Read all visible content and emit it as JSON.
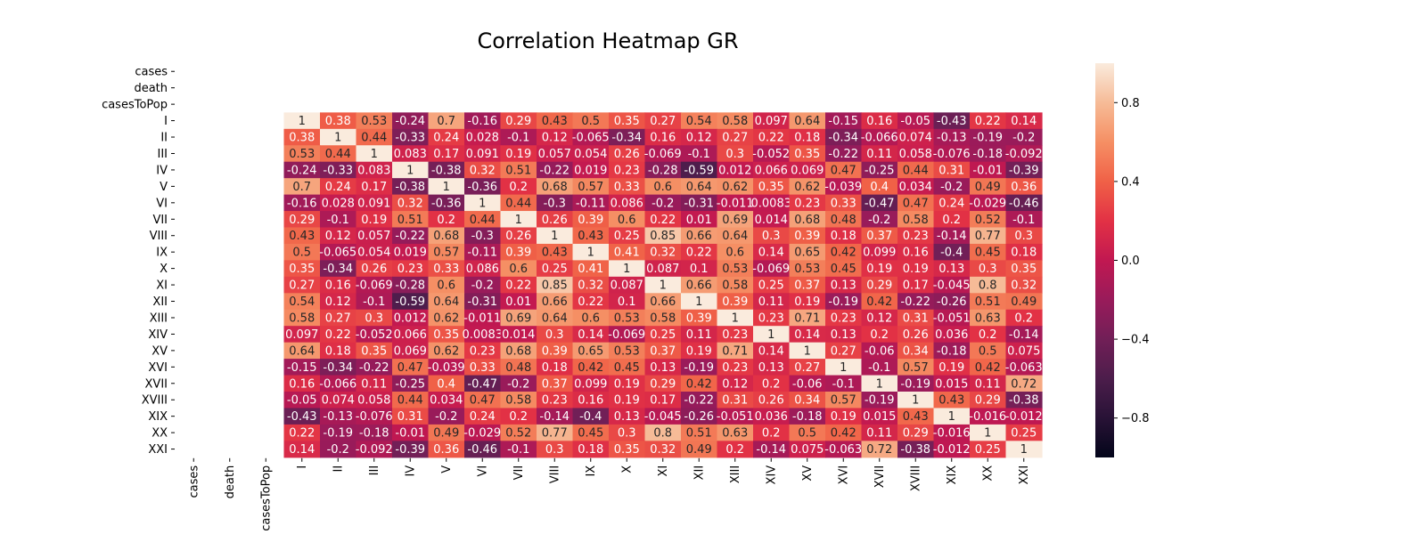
{
  "chart_data": {
    "type": "heatmap",
    "title": "Correlation Heatmap GR",
    "rows": [
      "cases",
      "death",
      "casesToPop",
      "I",
      "II",
      "III",
      "IV",
      "V",
      "VI",
      "VII",
      "VIII",
      "IX",
      "X",
      "XI",
      "XII",
      "XIII",
      "XIV",
      "XV",
      "XVI",
      "XVII",
      "XVIII",
      "XIX",
      "XX",
      "XXI"
    ],
    "columns": [
      "cases",
      "death",
      "casesToPop",
      "I",
      "II",
      "III",
      "IV",
      "V",
      "VI",
      "VII",
      "VIII",
      "IX",
      "X",
      "XI",
      "XII",
      "XIII",
      "XIV",
      "XV",
      "XVI",
      "XVII",
      "XVIII",
      "XIX",
      "XX",
      "XXI"
    ],
    "values": [
      [
        null,
        null,
        null,
        null,
        null,
        null,
        null,
        null,
        null,
        null,
        null,
        null,
        null,
        null,
        null,
        null,
        null,
        null,
        null,
        null,
        null,
        null,
        null,
        null
      ],
      [
        null,
        null,
        null,
        null,
        null,
        null,
        null,
        null,
        null,
        null,
        null,
        null,
        null,
        null,
        null,
        null,
        null,
        null,
        null,
        null,
        null,
        null,
        null,
        null
      ],
      [
        null,
        null,
        null,
        null,
        null,
        null,
        null,
        null,
        null,
        null,
        null,
        null,
        null,
        null,
        null,
        null,
        null,
        null,
        null,
        null,
        null,
        null,
        null,
        null
      ],
      [
        null,
        null,
        null,
        1,
        0.38,
        0.53,
        -0.24,
        0.7,
        -0.16,
        0.29,
        0.43,
        0.5,
        0.35,
        0.27,
        0.54,
        0.58,
        0.097,
        0.64,
        -0.15,
        0.16,
        -0.05,
        -0.43,
        0.22,
        0.14
      ],
      [
        null,
        null,
        null,
        0.38,
        1,
        0.44,
        -0.33,
        0.24,
        0.028,
        -0.1,
        0.12,
        -0.065,
        -0.34,
        0.16,
        0.12,
        0.27,
        0.22,
        0.18,
        -0.34,
        -0.066,
        0.074,
        -0.13,
        -0.19,
        -0.2
      ],
      [
        null,
        null,
        null,
        0.53,
        0.44,
        1,
        0.083,
        0.17,
        0.091,
        0.19,
        0.057,
        0.054,
        0.26,
        -0.069,
        -0.1,
        0.3,
        -0.052,
        0.35,
        -0.22,
        0.11,
        0.058,
        -0.076,
        -0.18,
        -0.092
      ],
      [
        null,
        null,
        null,
        -0.24,
        -0.33,
        0.083,
        1,
        -0.38,
        0.32,
        0.51,
        -0.22,
        0.019,
        0.23,
        -0.28,
        -0.59,
        0.012,
        0.066,
        0.069,
        0.47,
        -0.25,
        0.44,
        0.31,
        -0.01,
        -0.39
      ],
      [
        null,
        null,
        null,
        0.7,
        0.24,
        0.17,
        -0.38,
        1,
        -0.36,
        0.2,
        0.68,
        0.57,
        0.33,
        0.6,
        0.64,
        0.62,
        0.35,
        0.62,
        -0.039,
        0.4,
        0.034,
        -0.2,
        0.49,
        0.36
      ],
      [
        null,
        null,
        null,
        -0.16,
        0.028,
        0.091,
        0.32,
        -0.36,
        1,
        0.44,
        -0.3,
        -0.11,
        0.086,
        -0.2,
        -0.31,
        -0.011,
        0.0083,
        0.23,
        0.33,
        -0.47,
        0.47,
        0.24,
        -0.029,
        -0.46
      ],
      [
        null,
        null,
        null,
        0.29,
        -0.1,
        0.19,
        0.51,
        0.2,
        0.44,
        1,
        0.26,
        0.39,
        0.6,
        0.22,
        0.01,
        0.69,
        0.014,
        0.68,
        0.48,
        -0.2,
        0.58,
        0.2,
        0.52,
        -0.1
      ],
      [
        null,
        null,
        null,
        0.43,
        0.12,
        0.057,
        -0.22,
        0.68,
        -0.3,
        0.26,
        1,
        0.43,
        0.25,
        0.85,
        0.66,
        0.64,
        0.3,
        0.39,
        0.18,
        0.37,
        0.23,
        -0.14,
        0.77,
        0.3
      ],
      [
        null,
        null,
        null,
        0.5,
        -0.065,
        0.054,
        0.019,
        0.57,
        -0.11,
        0.39,
        0.43,
        1,
        0.41,
        0.32,
        0.22,
        0.6,
        0.14,
        0.65,
        0.42,
        0.099,
        0.16,
        -0.4,
        0.45,
        0.18
      ],
      [
        null,
        null,
        null,
        0.35,
        -0.34,
        0.26,
        0.23,
        0.33,
        0.086,
        0.6,
        0.25,
        0.41,
        1,
        0.087,
        0.1,
        0.53,
        -0.069,
        0.53,
        0.45,
        0.19,
        0.19,
        0.13,
        0.3,
        0.35
      ],
      [
        null,
        null,
        null,
        0.27,
        0.16,
        -0.069,
        -0.28,
        0.6,
        -0.2,
        0.22,
        0.85,
        0.32,
        0.087,
        1,
        0.66,
        0.58,
        0.25,
        0.37,
        0.13,
        0.29,
        0.17,
        -0.045,
        0.8,
        0.32
      ],
      [
        null,
        null,
        null,
        0.54,
        0.12,
        -0.1,
        -0.59,
        0.64,
        -0.31,
        0.01,
        0.66,
        0.22,
        0.1,
        0.66,
        1,
        0.39,
        0.11,
        0.19,
        -0.19,
        0.42,
        -0.22,
        -0.26,
        0.51,
        0.49
      ],
      [
        null,
        null,
        null,
        0.58,
        0.27,
        0.3,
        0.012,
        0.62,
        -0.011,
        0.69,
        0.64,
        0.6,
        0.53,
        0.58,
        0.39,
        1,
        0.23,
        0.71,
        0.23,
        0.12,
        0.31,
        -0.051,
        0.63,
        0.2
      ],
      [
        null,
        null,
        null,
        0.097,
        0.22,
        -0.052,
        0.066,
        0.35,
        0.0083,
        0.014,
        0.3,
        0.14,
        -0.069,
        0.25,
        0.11,
        0.23,
        1,
        0.14,
        0.13,
        0.2,
        0.26,
        0.036,
        0.2,
        -0.14
      ],
      [
        null,
        null,
        null,
        0.64,
        0.18,
        0.35,
        0.069,
        0.62,
        0.23,
        0.68,
        0.39,
        0.65,
        0.53,
        0.37,
        0.19,
        0.71,
        0.14,
        1,
        0.27,
        -0.06,
        0.34,
        -0.18,
        0.5,
        0.075
      ],
      [
        null,
        null,
        null,
        -0.15,
        -0.34,
        -0.22,
        0.47,
        -0.039,
        0.33,
        0.48,
        0.18,
        0.42,
        0.45,
        0.13,
        -0.19,
        0.23,
        0.13,
        0.27,
        1,
        -0.1,
        0.57,
        0.19,
        0.42,
        -0.063
      ],
      [
        null,
        null,
        null,
        0.16,
        -0.066,
        0.11,
        -0.25,
        0.4,
        -0.47,
        -0.2,
        0.37,
        0.099,
        0.19,
        0.29,
        0.42,
        0.12,
        0.2,
        -0.06,
        -0.1,
        1,
        -0.19,
        0.015,
        0.11,
        0.72
      ],
      [
        null,
        null,
        null,
        -0.05,
        0.074,
        0.058,
        0.44,
        0.034,
        0.47,
        0.58,
        0.23,
        0.16,
        0.19,
        0.17,
        -0.22,
        0.31,
        0.26,
        0.34,
        0.57,
        -0.19,
        1,
        0.43,
        0.29,
        -0.38
      ],
      [
        null,
        null,
        null,
        -0.43,
        -0.13,
        -0.076,
        0.31,
        -0.2,
        0.24,
        0.2,
        -0.14,
        -0.4,
        0.13,
        -0.045,
        -0.26,
        -0.051,
        0.036,
        -0.18,
        0.19,
        0.015,
        0.43,
        1,
        -0.016,
        -0.012
      ],
      [
        null,
        null,
        null,
        0.22,
        -0.19,
        -0.18,
        -0.01,
        0.49,
        -0.029,
        0.52,
        0.77,
        0.45,
        0.3,
        0.8,
        0.51,
        0.63,
        0.2,
        0.5,
        0.42,
        0.11,
        0.29,
        -0.016,
        1,
        0.25
      ],
      [
        null,
        null,
        null,
        0.14,
        -0.2,
        -0.092,
        -0.39,
        0.36,
        -0.46,
        -0.1,
        0.3,
        0.18,
        0.35,
        0.32,
        0.49,
        0.2,
        -0.14,
        0.075,
        -0.063,
        0.72,
        -0.38,
        -0.012,
        0.25,
        1
      ]
    ],
    "vmin": -1,
    "vmax": 1,
    "colormap": "rocket",
    "colorbar_ticks": [
      0.8,
      0.4,
      0.0,
      -0.4,
      -0.8
    ],
    "colorbar_tick_labels": [
      "0.8",
      "0.4",
      "0.0",
      "−0.4",
      "−0.8"
    ],
    "annotated": true,
    "grid": false
  }
}
